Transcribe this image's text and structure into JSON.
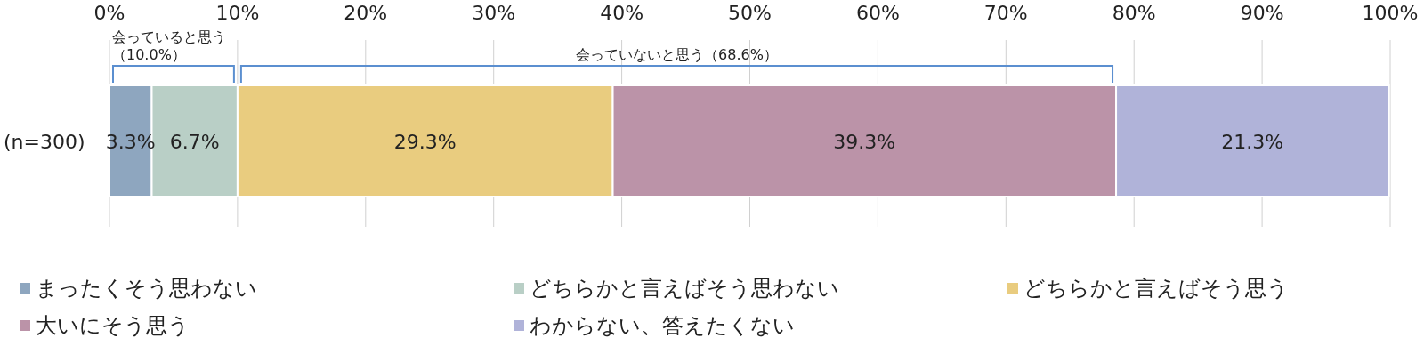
{
  "chart_data": {
    "type": "bar",
    "orientation": "horizontal",
    "stacked": true,
    "categories": [
      "(n=300)"
    ],
    "series": [
      {
        "name": "まったくそう思わない",
        "color": "#8ea6bf",
        "values": [
          3.3
        ],
        "value_labels": [
          "3.3%"
        ]
      },
      {
        "name": "どちらかと言えばそう思わない",
        "color": "#b9cfc6",
        "values": [
          6.7
        ],
        "value_labels": [
          "6.7%"
        ]
      },
      {
        "name": "どちらかと言えばそう思う",
        "color": "#e9cc7f",
        "values": [
          29.3
        ],
        "value_labels": [
          "29.3%"
        ]
      },
      {
        "name": "大いにそう思う",
        "color": "#bb93a8",
        "values": [
          39.3
        ],
        "value_labels": [
          "39.3%"
        ]
      },
      {
        "name": "わからない、答えたくない",
        "color": "#b0b3d9",
        "values": [
          21.3
        ],
        "value_labels": [
          "21.3%"
        ]
      }
    ],
    "xlim": [
      0,
      100
    ],
    "xticks": [
      {
        "value": 0,
        "label": "0%"
      },
      {
        "value": 10,
        "label": "10%"
      },
      {
        "value": 20,
        "label": "20%"
      },
      {
        "value": 30,
        "label": "30%"
      },
      {
        "value": 40,
        "label": "40%"
      },
      {
        "value": 50,
        "label": "50%"
      },
      {
        "value": 60,
        "label": "60%"
      },
      {
        "value": 70,
        "label": "70%"
      },
      {
        "value": 80,
        "label": "80%"
      },
      {
        "value": 90,
        "label": "90%"
      },
      {
        "value": 100,
        "label": "100%"
      }
    ],
    "grid": "x",
    "legend": "bottom",
    "annotations": [
      "会っていると思う（10.0%）",
      "会っていないと思う（68.6%）"
    ]
  }
}
